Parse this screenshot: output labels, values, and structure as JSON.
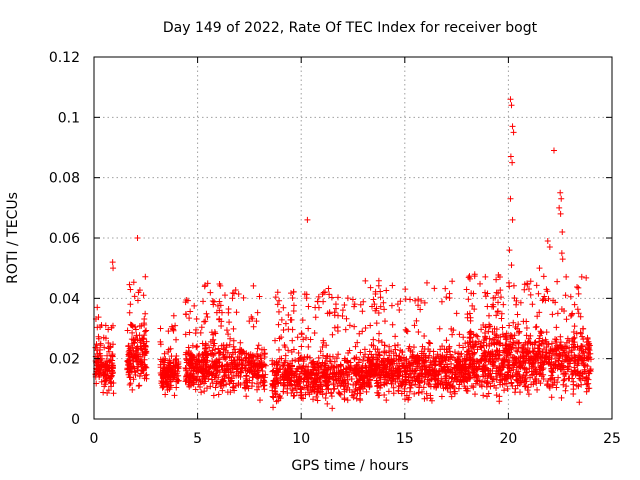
{
  "chart_data": {
    "type": "scatter",
    "title": "Day 149 of 2022, Rate Of TEC Index for receiver bogt",
    "xlabel": "GPS time / hours",
    "ylabel": "ROTI / TECUs",
    "xlim": [
      0,
      25
    ],
    "ylim": [
      0,
      0.12
    ],
    "xticks": [
      0,
      5,
      10,
      15,
      20,
      25
    ],
    "xtick_labels": [
      "0",
      "5",
      "10",
      "15",
      "20",
      "25"
    ],
    "yticks": [
      0,
      0.02,
      0.04,
      0.06,
      0.08,
      0.1,
      0.12
    ],
    "ytick_labels": [
      "0",
      "0.02",
      "0.04",
      "0.06",
      "0.08",
      "0.1",
      "0.12"
    ],
    "grid": true,
    "marker": "+",
    "series": [
      {
        "name": "ROTI",
        "color": "#ff0000",
        "segments": [
          {
            "start": 0.05,
            "end": 0.95,
            "low": 0.006,
            "mid": 0.017,
            "high": 0.038,
            "count": 150
          },
          {
            "start": 1.6,
            "end": 2.55,
            "low": 0.008,
            "mid": 0.021,
            "high": 0.048,
            "count": 170
          },
          {
            "start": 3.2,
            "end": 4.1,
            "low": 0.006,
            "mid": 0.015,
            "high": 0.036,
            "count": 150
          },
          {
            "start": 4.4,
            "end": 5.3,
            "low": 0.006,
            "mid": 0.016,
            "high": 0.04,
            "count": 150
          },
          {
            "start": 5.3,
            "end": 8.3,
            "low": 0.005,
            "mid": 0.017,
            "high": 0.045,
            "count": 420
          },
          {
            "start": 8.6,
            "end": 13.0,
            "low": 0.003,
            "mid": 0.014,
            "high": 0.044,
            "count": 650
          },
          {
            "start": 13.0,
            "end": 18.0,
            "low": 0.004,
            "mid": 0.016,
            "high": 0.046,
            "count": 760
          },
          {
            "start": 18.0,
            "end": 24.0,
            "low": 0.004,
            "mid": 0.019,
            "high": 0.048,
            "count": 950
          }
        ],
        "outliers": [
          {
            "x": 0.9,
            "y": 0.052
          },
          {
            "x": 0.92,
            "y": 0.05
          },
          {
            "x": 2.1,
            "y": 0.06
          },
          {
            "x": 10.3,
            "y": 0.066
          },
          {
            "x": 20.1,
            "y": 0.106
          },
          {
            "x": 20.15,
            "y": 0.104
          },
          {
            "x": 20.2,
            "y": 0.097
          },
          {
            "x": 20.25,
            "y": 0.095
          },
          {
            "x": 20.12,
            "y": 0.087
          },
          {
            "x": 20.18,
            "y": 0.085
          },
          {
            "x": 20.1,
            "y": 0.073
          },
          {
            "x": 20.2,
            "y": 0.066
          },
          {
            "x": 20.05,
            "y": 0.056
          },
          {
            "x": 20.15,
            "y": 0.051
          },
          {
            "x": 21.5,
            "y": 0.05
          },
          {
            "x": 21.9,
            "y": 0.059
          },
          {
            "x": 22.0,
            "y": 0.057
          },
          {
            "x": 22.2,
            "y": 0.089
          },
          {
            "x": 22.5,
            "y": 0.075
          },
          {
            "x": 22.55,
            "y": 0.073
          },
          {
            "x": 22.45,
            "y": 0.07
          },
          {
            "x": 22.52,
            "y": 0.068
          },
          {
            "x": 22.6,
            "y": 0.062
          },
          {
            "x": 22.58,
            "y": 0.055
          },
          {
            "x": 22.62,
            "y": 0.053
          }
        ]
      }
    ]
  }
}
